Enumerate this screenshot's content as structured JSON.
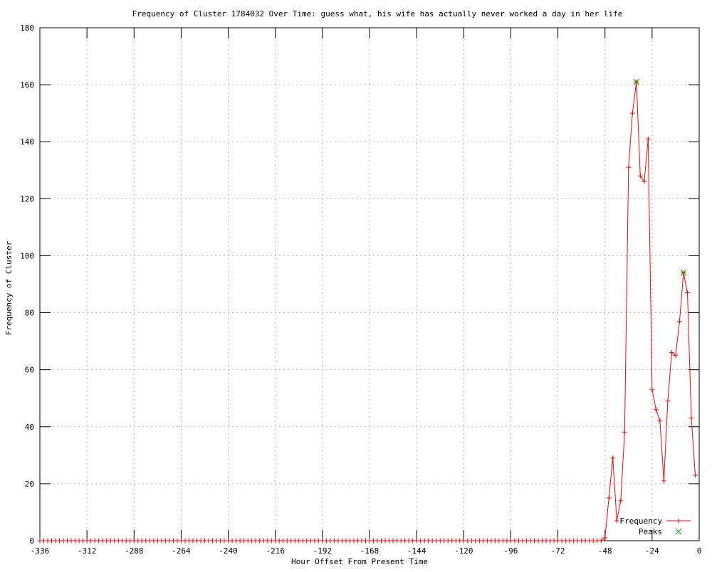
{
  "chart_data": {
    "type": "line",
    "title": "Frequency of Cluster 1784032 Over Time: guess what, his wife has actually never worked a day in her life",
    "xlabel": "Hour Offset From Present Time",
    "ylabel": "Frequency of Cluster",
    "xlim": [
      -336,
      0
    ],
    "ylim": [
      0,
      180
    ],
    "xticks": [
      -336,
      -312,
      -288,
      -264,
      -240,
      -216,
      -192,
      -168,
      -144,
      -120,
      -96,
      -72,
      -48,
      -24,
      0
    ],
    "yticks": [
      0,
      20,
      40,
      60,
      80,
      100,
      120,
      140,
      160,
      180
    ],
    "grid": true,
    "grid_style": "dotted",
    "legend_position": "bottom-right",
    "background_color": "#ffffff",
    "axis_color": "#000000",
    "grid_color": "#b4b4b4",
    "series": [
      {
        "name": "Frequency",
        "style": "linespoints",
        "marker": "plus",
        "color": "#ff0000",
        "x_start": -336,
        "x_step": 2,
        "values": [
          0,
          0,
          0,
          0,
          0,
          0,
          0,
          0,
          0,
          0,
          0,
          0,
          0,
          0,
          0,
          0,
          0,
          0,
          0,
          0,
          0,
          0,
          0,
          0,
          0,
          0,
          0,
          0,
          0,
          0,
          0,
          0,
          0,
          0,
          0,
          0,
          0,
          0,
          0,
          0,
          0,
          0,
          0,
          0,
          0,
          0,
          0,
          0,
          0,
          0,
          0,
          0,
          0,
          0,
          0,
          0,
          0,
          0,
          0,
          0,
          0,
          0,
          0,
          0,
          0,
          0,
          0,
          0,
          0,
          0,
          0,
          0,
          0,
          0,
          0,
          0,
          0,
          0,
          0,
          0,
          0,
          0,
          0,
          0,
          0,
          0,
          0,
          0,
          0,
          0,
          0,
          0,
          0,
          0,
          0,
          0,
          0,
          0,
          0,
          0,
          0,
          0,
          0,
          0,
          0,
          0,
          0,
          0,
          0,
          0,
          0,
          0,
          0,
          0,
          0,
          0,
          0,
          0,
          0,
          0,
          0,
          0,
          0,
          0,
          0,
          0,
          0,
          0,
          0,
          0,
          0,
          0,
          0,
          0,
          0,
          0,
          0,
          0,
          0,
          0,
          0,
          0,
          0,
          0,
          1,
          15,
          29,
          7,
          14,
          38,
          131,
          150,
          161,
          128,
          126,
          141,
          53,
          46,
          42,
          21,
          49,
          66,
          65,
          77,
          94,
          87,
          43,
          23
        ]
      },
      {
        "name": "Peaks",
        "style": "points",
        "marker": "cross",
        "color": "#00a000",
        "points": [
          [
            -32,
            161
          ],
          [
            -8,
            94
          ]
        ]
      }
    ]
  }
}
